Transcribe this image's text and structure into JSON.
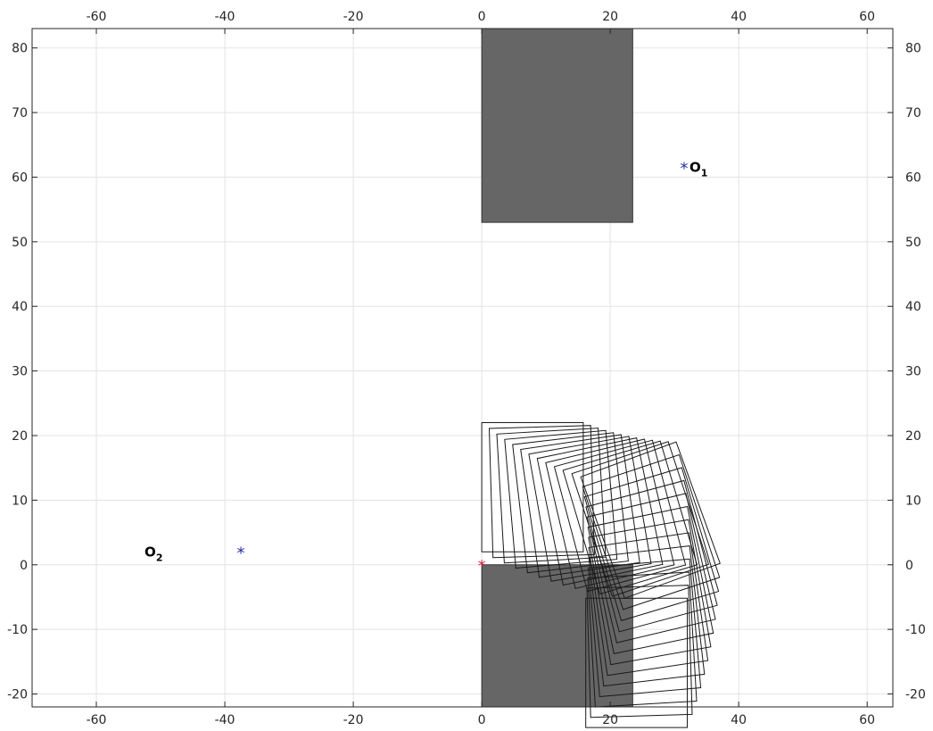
{
  "chart_data": {
    "type": "scatter",
    "title": "",
    "xlabel": "",
    "ylabel": "",
    "xlim": [
      -70,
      64
    ],
    "ylim": [
      -22,
      83
    ],
    "x_ticks": [
      "-60",
      "-40",
      "-20",
      "0",
      "20",
      "40",
      "60"
    ],
    "y_ticks": [
      "-20",
      "-10",
      "0",
      "10",
      "20",
      "30",
      "40",
      "50",
      "60",
      "70",
      "80"
    ],
    "grid": true,
    "colors": {
      "obstacle": "#666666",
      "rectangle": "#1a1a1a",
      "center_marker": "#1f2fa8",
      "origin_marker": "#d0243c",
      "grid": "#e3e3e3"
    },
    "obstacles": [
      {
        "name": "upper-block",
        "x": [
          0,
          23.5
        ],
        "y": [
          53,
          83
        ]
      },
      {
        "name": "lower-block",
        "x": [
          0,
          23.5
        ],
        "y": [
          -22,
          0
        ]
      }
    ],
    "points": [
      {
        "name": "O1",
        "label_main": "O",
        "label_sub": "1",
        "x": 31.5,
        "y": 61.5,
        "marker": "*",
        "color": "#1f2fa8"
      },
      {
        "name": "O2",
        "label_main": "O",
        "label_sub": "2",
        "x": -37.5,
        "y": 2,
        "marker": "*",
        "color": "#1f2fa8"
      },
      {
        "name": "origin",
        "x": 0,
        "y": 0,
        "marker": "*",
        "color": "#d0243c"
      }
    ],
    "trajectory": {
      "rect_width": 15.8,
      "rect_height": 20,
      "segments": [
        {
          "center": [
            31.5,
            61.5
          ],
          "steps": 12,
          "start_pos": [
            0,
            2
          ],
          "start_angle_deg": 0,
          "sweep_deg": 20
        },
        {
          "center": [
            -37.5,
            2
          ],
          "steps": 12,
          "sweep_deg": -20
        }
      ]
    }
  }
}
